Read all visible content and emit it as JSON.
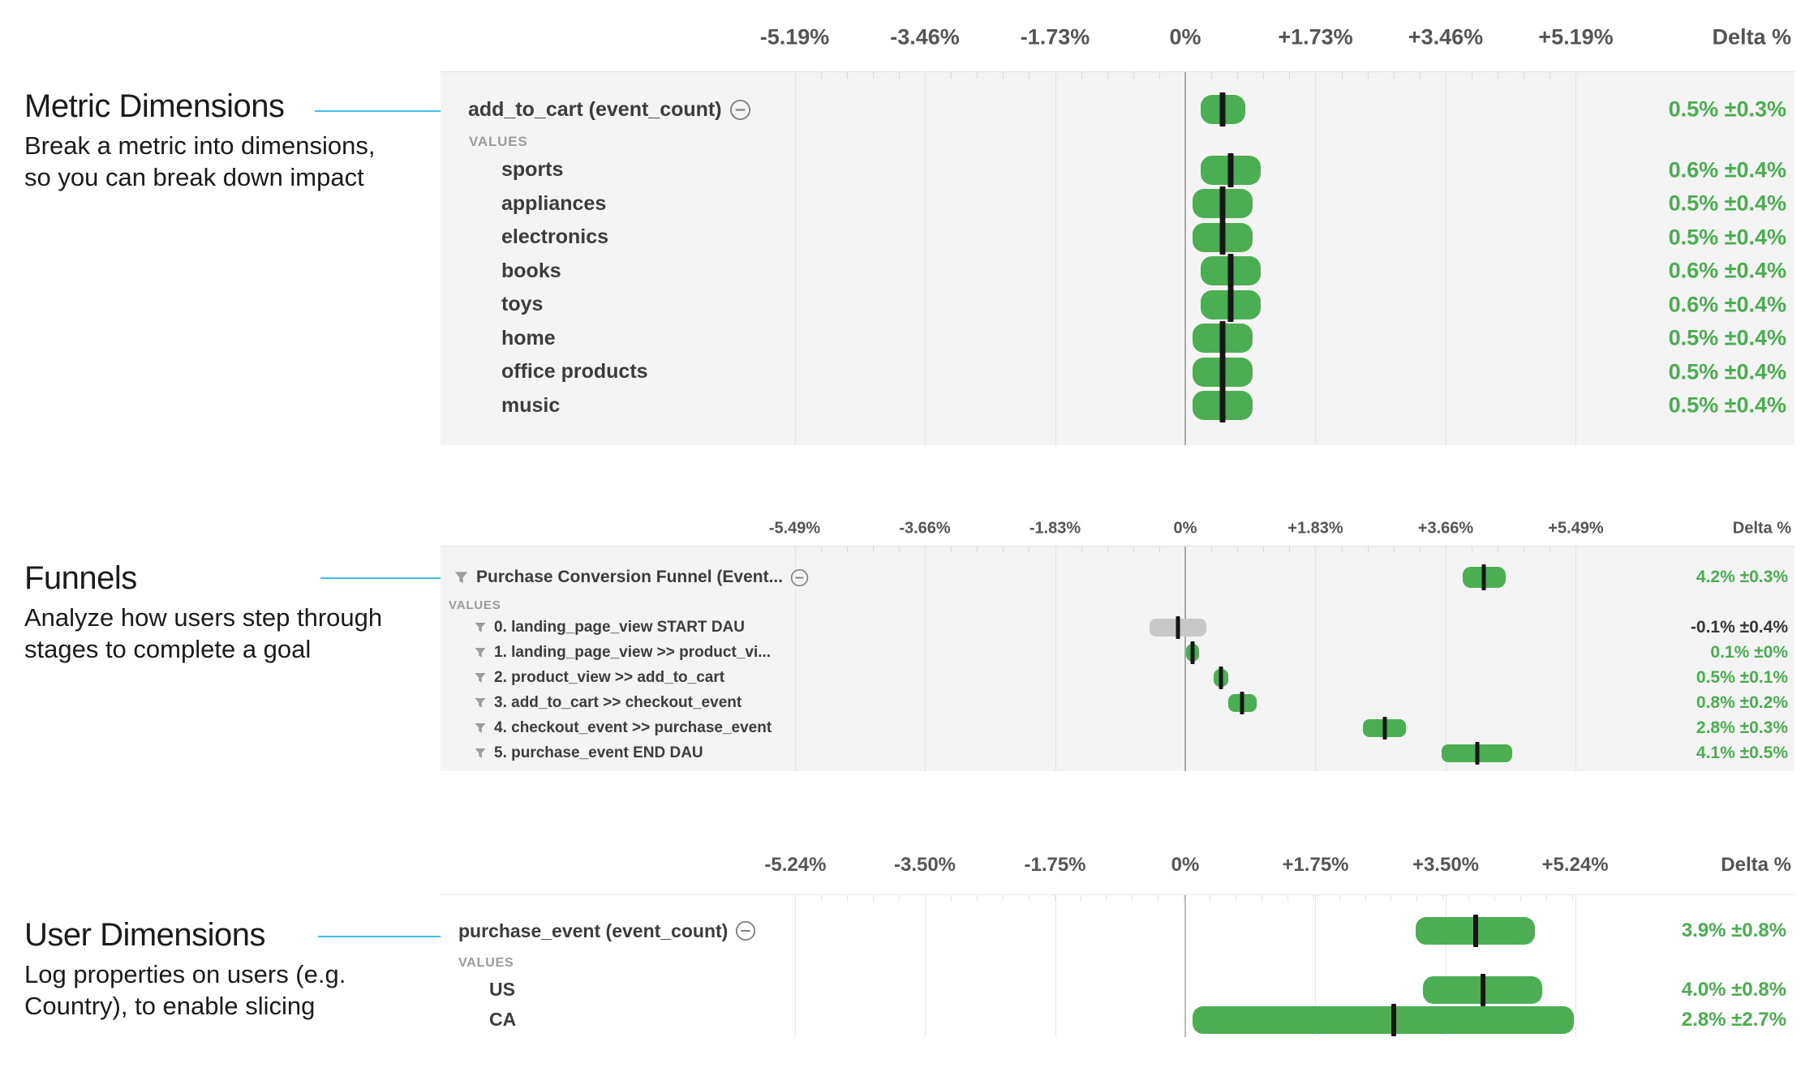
{
  "colors": {
    "bar_green": "#4cae52",
    "bar_gray": "#c8c8c8",
    "delta_green": "#4aad50",
    "delta_dark": "#373737",
    "connector_blue": "#45bde4",
    "chart_bg_gray": "#f4f4f4",
    "chart_bg_white": "#ffffff"
  },
  "annotations": [
    {
      "title": "Metric Dimensions",
      "desc_lines": [
        "Break a metric into dimensions,",
        "so you can break down impact"
      ]
    },
    {
      "title": "Funnels",
      "desc_lines": [
        "Analyze how users step through",
        "stages to complete a goal"
      ]
    },
    {
      "title": "User Dimensions",
      "desc_lines": [
        "Log properties on users (e.g.",
        "Country), to enable slicing"
      ]
    }
  ],
  "chart_data": [
    {
      "type": "bar",
      "bar_style": "confidence_interval",
      "title": "add_to_cart metric dimensions",
      "delta_header": "Delta %",
      "axis_ticks": [
        "-5.19%",
        "-3.46%",
        "-1.73%",
        "0%",
        "+1.73%",
        "+3.46%",
        "+5.19%"
      ],
      "tick_values": [
        -5.19,
        -3.46,
        -1.73,
        0,
        1.73,
        3.46,
        5.19
      ],
      "zero_line": true,
      "rows": [
        {
          "kind": "header",
          "label": "add_to_cart (event_count)",
          "minus": true,
          "value": 0.5,
          "ci": 0.3,
          "delta_label": "0.5% ±0.3%",
          "bar_color": "green"
        },
        {
          "kind": "section",
          "label": "VALUES"
        },
        {
          "kind": "value",
          "label": "sports",
          "value": 0.6,
          "ci": 0.4,
          "delta_label": "0.6% ±0.4%",
          "bar_color": "green"
        },
        {
          "kind": "value",
          "label": "appliances",
          "value": 0.5,
          "ci": 0.4,
          "delta_label": "0.5% ±0.4%",
          "bar_color": "green"
        },
        {
          "kind": "value",
          "label": "electronics",
          "value": 0.5,
          "ci": 0.4,
          "delta_label": "0.5% ±0.4%",
          "bar_color": "green"
        },
        {
          "kind": "value",
          "label": "books",
          "value": 0.6,
          "ci": 0.4,
          "delta_label": "0.6% ±0.4%",
          "bar_color": "green"
        },
        {
          "kind": "value",
          "label": "toys",
          "value": 0.6,
          "ci": 0.4,
          "delta_label": "0.6% ±0.4%",
          "bar_color": "green"
        },
        {
          "kind": "value",
          "label": "home",
          "value": 0.5,
          "ci": 0.4,
          "delta_label": "0.5% ±0.4%",
          "bar_color": "green"
        },
        {
          "kind": "value",
          "label": "office products",
          "value": 0.5,
          "ci": 0.4,
          "delta_label": "0.5% ±0.4%",
          "bar_color": "green"
        },
        {
          "kind": "value",
          "label": "music",
          "value": 0.5,
          "ci": 0.4,
          "delta_label": "0.5% ±0.4%",
          "bar_color": "green"
        }
      ]
    },
    {
      "type": "bar",
      "bar_style": "confidence_interval",
      "title": "Purchase Conversion Funnel",
      "delta_header": "Delta %",
      "axis_ticks": [
        "-5.49%",
        "-3.66%",
        "-1.83%",
        "0%",
        "+1.83%",
        "+3.66%",
        "+5.49%"
      ],
      "tick_values": [
        -5.49,
        -3.66,
        -1.83,
        0,
        1.83,
        3.66,
        5.49
      ],
      "zero_line": true,
      "rows": [
        {
          "kind": "header",
          "label": "Purchase Conversion Funnel (Event...",
          "funnel": true,
          "minus": true,
          "value": 4.2,
          "ci": 0.3,
          "delta_label": "4.2% ±0.3%",
          "bar_color": "green"
        },
        {
          "kind": "section",
          "label": "VALUES"
        },
        {
          "kind": "value",
          "label": "0. landing_page_view START DAU",
          "funnel": true,
          "value": -0.1,
          "ci": 0.4,
          "delta_label": "-0.1% ±0.4%",
          "bar_color": "gray"
        },
        {
          "kind": "value",
          "label": "1. landing_page_view >> product_vi...",
          "funnel": true,
          "value": 0.1,
          "ci": 0,
          "delta_label": "0.1% ±0%",
          "bar_color": "green"
        },
        {
          "kind": "value",
          "label": "2. product_view >> add_to_cart",
          "funnel": true,
          "value": 0.5,
          "ci": 0.1,
          "delta_label": "0.5% ±0.1%",
          "bar_color": "green"
        },
        {
          "kind": "value",
          "label": "3. add_to_cart >> checkout_event",
          "funnel": true,
          "value": 0.8,
          "ci": 0.2,
          "delta_label": "0.8% ±0.2%",
          "bar_color": "green"
        },
        {
          "kind": "value",
          "label": "4. checkout_event >> purchase_event",
          "funnel": true,
          "value": 2.8,
          "ci": 0.3,
          "delta_label": "2.8% ±0.3%",
          "bar_color": "green"
        },
        {
          "kind": "value",
          "label": "5. purchase_event END DAU",
          "funnel": true,
          "value": 4.1,
          "ci": 0.5,
          "delta_label": "4.1% ±0.5%",
          "bar_color": "green"
        }
      ]
    },
    {
      "type": "bar",
      "bar_style": "confidence_interval",
      "title": "purchase_event user dimensions",
      "delta_header": "Delta %",
      "axis_ticks": [
        "-5.24%",
        "-3.50%",
        "-1.75%",
        "0%",
        "+1.75%",
        "+3.50%",
        "+5.24%"
      ],
      "tick_values": [
        -5.24,
        -3.5,
        -1.75,
        0,
        1.75,
        3.5,
        5.24
      ],
      "zero_line": true,
      "rows": [
        {
          "kind": "header",
          "label": "purchase_event (event_count)",
          "minus": true,
          "value": 3.9,
          "ci": 0.8,
          "delta_label": "3.9% ±0.8%",
          "bar_color": "green"
        },
        {
          "kind": "section",
          "label": "VALUES"
        },
        {
          "kind": "value",
          "label": "US",
          "value": 4.0,
          "ci": 0.8,
          "delta_label": "4.0% ±0.8%",
          "bar_color": "green"
        },
        {
          "kind": "value",
          "label": "CA",
          "value": 2.8,
          "ci": 2.7,
          "delta_label": "2.8% ±2.7%",
          "bar_color": "green"
        }
      ]
    }
  ]
}
